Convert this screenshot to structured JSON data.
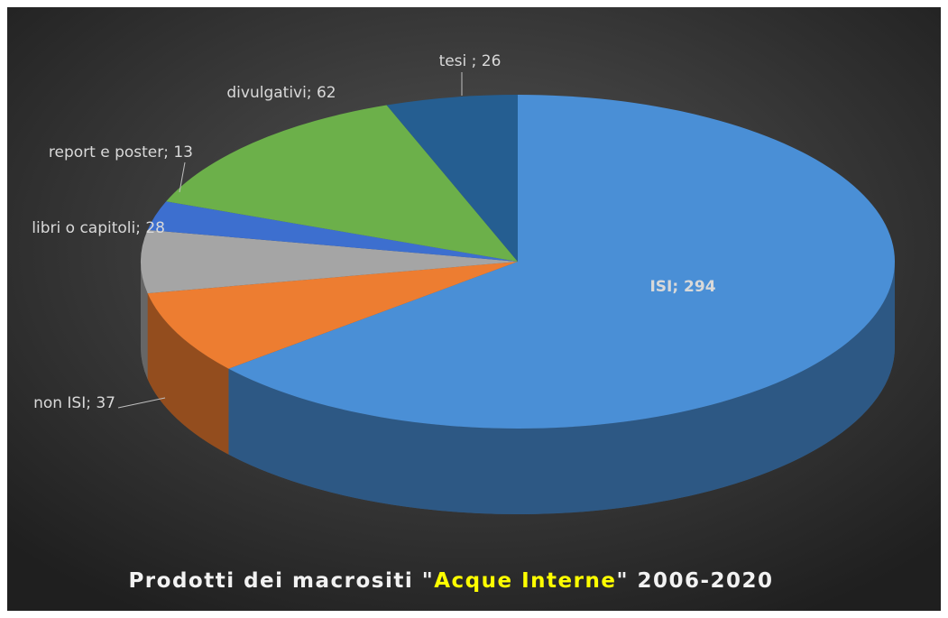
{
  "chart_data": {
    "type": "pie3d",
    "title": {
      "before": "Prodotti dei macrositi \"",
      "highlight": "Acque Interne",
      "after": "\" 2006-2020"
    },
    "values": [
      294,
      37,
      28,
      13,
      62,
      26
    ],
    "value_labels": [
      "ISI; 294",
      "non ISI; 37",
      "libri o capitoli; 28",
      "report e poster; 13",
      "divulgativi; 62",
      "tesi ; 26"
    ],
    "colors": [
      "#4a8fd6",
      "#ed7d31",
      "#a5a5a5",
      "#3d6fcf",
      "#6cb04a",
      "#255e91"
    ]
  }
}
